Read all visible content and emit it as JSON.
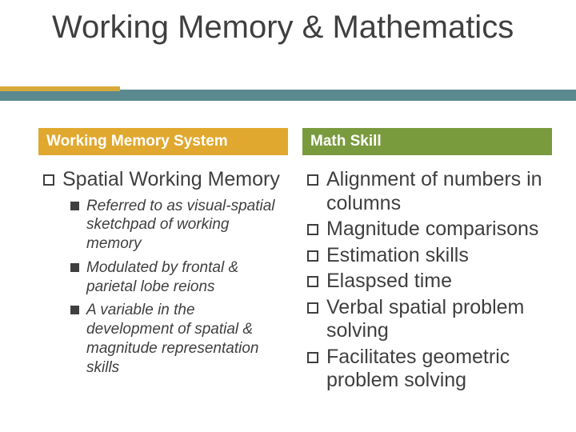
{
  "colors": {
    "text": "#3f3f3f",
    "teal_band": "#5a8a8f",
    "gold_accent": "#d7a93a",
    "left_header_bg": "#e0a82e",
    "right_header_bg": "#7a9a3e",
    "background": "#ffffff"
  },
  "typography": {
    "title_fontsize": 40,
    "header_fontsize": 19,
    "lvl1_fontsize": 25,
    "lvl2_fontsize": 19,
    "lvl2_italic": true,
    "font_family": "Arial"
  },
  "title": "Working Memory & Mathematics",
  "left": {
    "header": "Working Memory System",
    "main": "Spatial Working Memory",
    "sub": [
      "Referred to as visual-spatial sketchpad of working memory",
      "Modulated by frontal & parietal lobe reions",
      "A variable in the development of spatial & magnitude representation skills"
    ]
  },
  "right": {
    "header": "Math Skill",
    "items": [
      "Alignment of numbers in columns",
      "Magnitude comparisons",
      "Estimation skills",
      "Elaspsed time",
      "Verbal spatial problem solving",
      "Facilitates geometric problem solving"
    ]
  }
}
